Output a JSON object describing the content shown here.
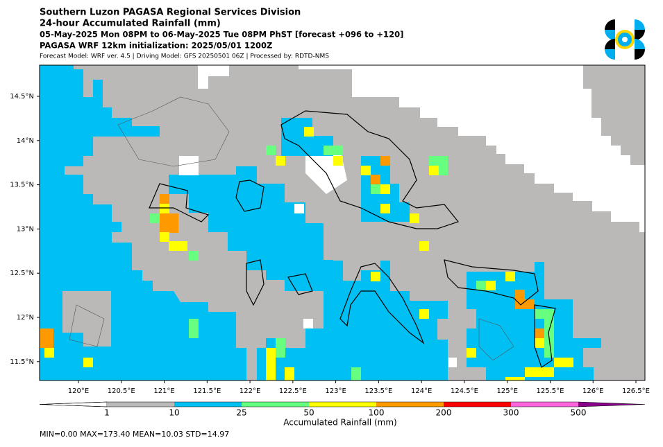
{
  "header": {
    "lines": [
      "Southern Luzon PAGASA Regional Services Division",
      "24-hour Accumulated Rainfall (mm)",
      "05-May-2025 Mon 08PM to 06-May-2025 Tue 08PM PhST [forecast +096 to +120]",
      "PAGASA WRF 12km initialization: 2025/05/01 1200Z",
      "Forecast Model: WRF ver. 4.5 | Driving Model: GFS 20250501 06Z | Processed by: RDTD-NMS"
    ]
  },
  "map": {
    "xticks": [
      "120°E",
      "120.5°E",
      "121°E",
      "121.5°E",
      "122°E",
      "122.5°E",
      "123°E",
      "123.5°E",
      "124°E",
      "124.5°E",
      "125°E",
      "125.5°E",
      "126°E",
      "126.5°E"
    ],
    "yticks": [
      "14.5°N",
      "14°N",
      "13.5°N",
      "13°N",
      "12.5°N",
      "12°N",
      "11.5°N"
    ]
  },
  "colorbar": {
    "labels": [
      "1",
      "10",
      "25",
      "50",
      "100",
      "200",
      "300",
      "500"
    ],
    "colors": [
      "#bbb8b8",
      "#00bff3",
      "#66ff80",
      "#ffff00",
      "#ff9900",
      "#ff0000",
      "#ff66dd",
      "#8b008b"
    ],
    "title": "Accumulated Rainfall (mm)"
  },
  "stats": "MIN=0.00   MAX=173.40   MEAN=10.03   STD=14.97"
}
